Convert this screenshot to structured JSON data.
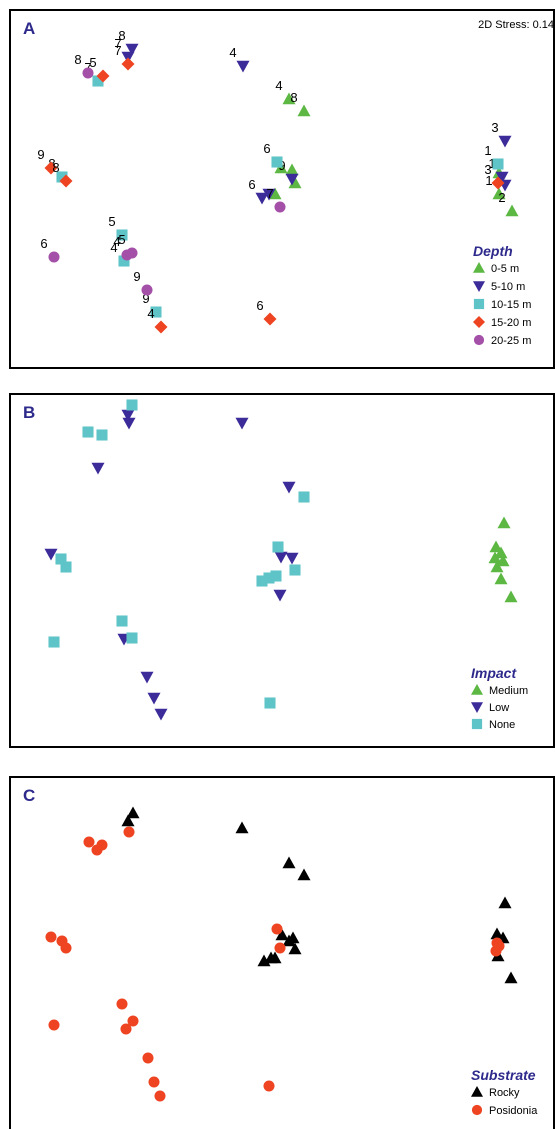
{
  "stress_label": "2D Stress: 0.14",
  "colors": {
    "green": "#5cb843",
    "navy": "#3b2c9a",
    "teal": "#5fc4c8",
    "orange": "#ee4422",
    "purple": "#a450a8",
    "black": "#000000",
    "red": "#ee4422",
    "title": "#2e2a8c"
  },
  "chart_data": [
    {
      "type": "scatter",
      "panel": "A",
      "title": "",
      "xlabel": "",
      "ylabel": "",
      "xlim": [
        0,
        546
      ],
      "ylim": [
        -360,
        0
      ],
      "grid": false,
      "legend": {
        "title": "Depth",
        "placement": "bottom-right",
        "entries": [
          {
            "label": "0-5 m",
            "shape": "triangle-up",
            "color": "#5cb843"
          },
          {
            "label": "5-10 m",
            "shape": "triangle-down",
            "color": "#3b2c9a"
          },
          {
            "label": "10-15 m",
            "shape": "square",
            "color": "#5fc4c8"
          },
          {
            "label": "15-20 m",
            "shape": "diamond",
            "color": "#ee4422"
          },
          {
            "label": "20-25 m",
            "shape": "circle",
            "color": "#a450a8"
          }
        ]
      },
      "series": [
        {
          "name": "0-5 m",
          "shape": "triangle-up",
          "color": "#5cb843",
          "points": [
            [
              278,
              -88,
              "4"
            ],
            [
              293,
              -100,
              "8"
            ],
            [
              270,
              -157,
              ""
            ],
            [
              281,
              -159,
              ""
            ],
            [
              284,
              -172,
              ""
            ],
            [
              264,
              -183,
              ""
            ],
            [
              488,
              -162,
              ""
            ],
            [
              488,
              -183,
              "1"
            ],
            [
              501,
              -200,
              "2"
            ]
          ]
        },
        {
          "name": "5-10 m",
          "shape": "triangle-down",
          "color": "#3b2c9a",
          "points": [
            [
              121,
              -38,
              "8"
            ],
            [
              117,
              -46,
              "7"
            ],
            [
              232,
              -55,
              "4"
            ],
            [
              281,
              -168,
              "9"
            ],
            [
              251,
              -187,
              "6"
            ],
            [
              258,
              -183,
              ""
            ],
            [
              494,
              -130,
              "3"
            ],
            [
              491,
              -166,
              "1"
            ],
            [
              494,
              -174,
              ""
            ]
          ]
        },
        {
          "name": "10-15 m",
          "shape": "square",
          "color": "#5fc4c8",
          "points": [
            [
              87,
              -70,
              "7"
            ],
            [
              266,
              -151,
              "6"
            ],
            [
              51,
              -166,
              "8"
            ],
            [
              111,
              -224,
              "5"
            ],
            [
              113,
              -250,
              "4"
            ],
            [
              145,
              -301,
              "9"
            ],
            [
              487,
              -153,
              "1"
            ]
          ]
        },
        {
          "name": "15-20 m",
          "shape": "diamond",
          "color": "#ee4422",
          "points": [
            [
              92,
              -65,
              "5"
            ],
            [
              117,
              -53,
              "7"
            ],
            [
              40,
              -157,
              "9"
            ],
            [
              55,
              -170,
              "8"
            ],
            [
              259,
              -308,
              "6"
            ],
            [
              150,
              -316,
              "4"
            ],
            [
              487,
              -172,
              "3"
            ]
          ]
        },
        {
          "name": "20-25 m",
          "shape": "circle",
          "color": "#a450a8",
          "points": [
            [
              77,
              -62,
              "8"
            ],
            [
              269,
              -196,
              "7"
            ],
            [
              43,
              -246,
              "6"
            ],
            [
              116,
              -244,
              "4"
            ],
            [
              121,
              -242,
              "5"
            ],
            [
              136,
              -279,
              "9"
            ]
          ]
        }
      ]
    },
    {
      "type": "scatter",
      "panel": "B",
      "title": "",
      "xlabel": "",
      "ylabel": "",
      "xlim": [
        0,
        546
      ],
      "ylim": [
        -355,
        0
      ],
      "grid": false,
      "legend": {
        "title": "Impact",
        "placement": "bottom-right",
        "entries": [
          {
            "label": "Medium",
            "shape": "triangle-up",
            "color": "#5cb843"
          },
          {
            "label": "Low",
            "shape": "triangle-down",
            "color": "#3b2c9a"
          },
          {
            "label": "None",
            "shape": "square",
            "color": "#5fc4c8"
          }
        ]
      },
      "series": [
        {
          "name": "Medium",
          "shape": "triangle-up",
          "color": "#5cb843",
          "points": [
            [
              493,
              -128
            ],
            [
              485,
              -152
            ],
            [
              490,
              -158
            ],
            [
              484,
              -163
            ],
            [
              492,
              -166
            ],
            [
              486,
              -172
            ],
            [
              490,
              -184
            ],
            [
              500,
              -202
            ]
          ]
        },
        {
          "name": "Low",
          "shape": "triangle-down",
          "color": "#3b2c9a",
          "points": [
            [
              117,
              -20
            ],
            [
              118,
              -28
            ],
            [
              87,
              -73
            ],
            [
              231,
              -28
            ],
            [
              278,
              -92
            ],
            [
              40,
              -159
            ],
            [
              270,
              -162
            ],
            [
              281,
              -163
            ],
            [
              269,
              -200
            ],
            [
              113,
              -244
            ],
            [
              136,
              -282
            ],
            [
              143,
              -303
            ],
            [
              150,
              -319
            ]
          ]
        },
        {
          "name": "None",
          "shape": "square",
          "color": "#5fc4c8",
          "points": [
            [
              121,
              -10
            ],
            [
              77,
              -37
            ],
            [
              91,
              -40
            ],
            [
              293,
              -102
            ],
            [
              267,
              -152
            ],
            [
              50,
              -164
            ],
            [
              55,
              -172
            ],
            [
              284,
              -175
            ],
            [
              251,
              -186
            ],
            [
              258,
              -183
            ],
            [
              265,
              -181
            ],
            [
              111,
              -226
            ],
            [
              121,
              -243
            ],
            [
              43,
              -247
            ],
            [
              259,
              -308
            ]
          ]
        }
      ]
    },
    {
      "type": "scatter",
      "panel": "C",
      "title": "",
      "xlabel": "",
      "ylabel": "",
      "xlim": [
        0,
        546
      ],
      "ylim": [
        -353,
        0
      ],
      "grid": false,
      "legend": {
        "title": "Substrate",
        "placement": "bottom-right",
        "entries": [
          {
            "label": "Rocky",
            "shape": "triangle-up",
            "color": "#000000"
          },
          {
            "label": "Posidonia",
            "shape": "circle",
            "color": "#ee4422"
          }
        ]
      },
      "series": [
        {
          "name": "Rocky",
          "shape": "triangle-up",
          "color": "#000000",
          "points": [
            [
              122,
              -35
            ],
            [
              117,
              -43
            ],
            [
              231,
              -50
            ],
            [
              278,
              -85
            ],
            [
              293,
              -97
            ],
            [
              271,
              -157
            ],
            [
              278,
              -163
            ],
            [
              282,
              -160
            ],
            [
              284,
              -171
            ],
            [
              253,
              -183
            ],
            [
              260,
              -180
            ],
            [
              264,
              -180
            ],
            [
              494,
              -125
            ],
            [
              486,
              -156
            ],
            [
              492,
              -160
            ],
            [
              487,
              -178
            ],
            [
              500,
              -200
            ]
          ]
        },
        {
          "name": "Posidonia",
          "shape": "circle",
          "color": "#ee4422",
          "points": [
            [
              118,
              -54
            ],
            [
              78,
              -64
            ],
            [
              91,
              -67
            ],
            [
              86,
              -72
            ],
            [
              40,
              -159
            ],
            [
              51,
              -163
            ],
            [
              55,
              -170
            ],
            [
              266,
              -151
            ],
            [
              269,
              -170
            ],
            [
              486,
              -165
            ],
            [
              488,
              -168
            ],
            [
              485,
              -173
            ],
            [
              111,
              -226
            ],
            [
              122,
              -243
            ],
            [
              115,
              -251
            ],
            [
              43,
              -247
            ],
            [
              137,
              -280
            ],
            [
              143,
              -304
            ],
            [
              149,
              -318
            ],
            [
              258,
              -308
            ]
          ]
        }
      ]
    }
  ]
}
